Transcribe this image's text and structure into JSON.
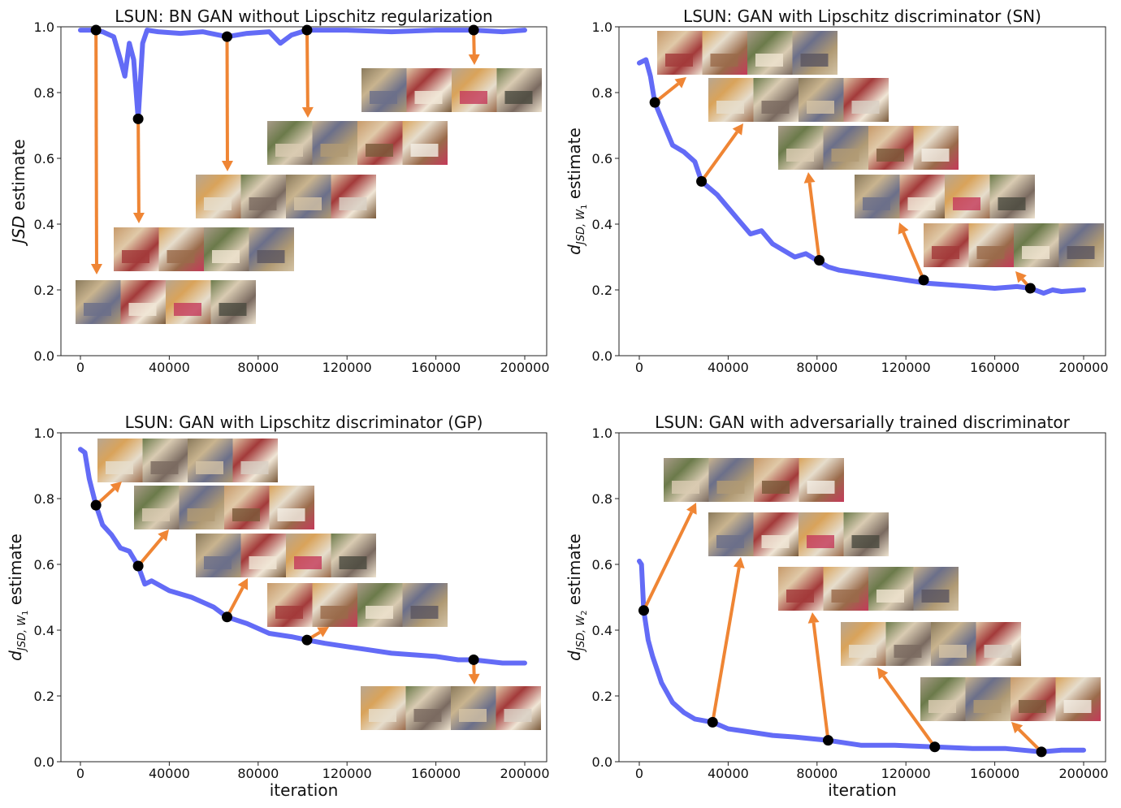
{
  "chart_data": [
    {
      "type": "line",
      "title": "LSUN: BN GAN without Lipschitz regularization",
      "xlabel": "",
      "ylabel_parts": [
        {
          "text": "JSD",
          "style": "italic"
        },
        {
          "text": " estimate",
          "style": "normal"
        }
      ],
      "xlim": [
        -4000,
        210000
      ],
      "ylim": [
        0,
        1
      ],
      "xticks": [
        0,
        40000,
        80000,
        120000,
        160000,
        200000
      ],
      "yticks": [
        0.0,
        0.2,
        0.4,
        0.6,
        0.8,
        1.0
      ],
      "ytick_labels": [
        "0.0",
        "0.2",
        "0.4",
        "0.6",
        "0.8",
        "1.0"
      ],
      "line_color": "#5b63f5",
      "marker_color": "#000000",
      "arrow_color": "#ef8534",
      "series": {
        "name": "JSD estimate",
        "x": [
          0,
          5000,
          10000,
          15000,
          18000,
          20000,
          22000,
          24000,
          26000,
          28000,
          30000,
          35000,
          45000,
          55000,
          66000,
          75000,
          85000,
          90000,
          95000,
          102000,
          120000,
          140000,
          160000,
          177000,
          190000,
          200000
        ],
        "y": [
          0.99,
          0.99,
          0.985,
          0.97,
          0.9,
          0.85,
          0.95,
          0.9,
          0.72,
          0.95,
          0.99,
          0.985,
          0.98,
          0.985,
          0.97,
          0.98,
          0.985,
          0.95,
          0.975,
          0.99,
          0.99,
          0.985,
          0.99,
          0.99,
          0.985,
          0.99
        ]
      },
      "sample_points": {
        "x": [
          7000,
          26000,
          66000,
          102000,
          177000
        ],
        "y": [
          0.99,
          0.72,
          0.97,
          0.99,
          0.99
        ]
      }
    },
    {
      "type": "line",
      "title": "LSUN: GAN with Lipschitz discriminator (SN)",
      "xlabel": "",
      "ylabel_parts": [
        {
          "text": "d",
          "style": "italic"
        },
        {
          "text": "JSD, W",
          "style": "sub-italic"
        },
        {
          "text": "1",
          "style": "subsub"
        },
        {
          "text": " estimate",
          "style": "normal"
        }
      ],
      "xlim": [
        -4000,
        210000
      ],
      "ylim": [
        0,
        1
      ],
      "xticks": [
        0,
        40000,
        80000,
        120000,
        160000,
        200000
      ],
      "yticks": [
        0.0,
        0.2,
        0.4,
        0.6,
        0.8,
        1.0
      ],
      "ytick_labels": [
        "0.0",
        "0.2",
        "0.4",
        "0.6",
        "0.8",
        "1.0"
      ],
      "line_color": "#5b63f5",
      "marker_color": "#000000",
      "arrow_color": "#ef8534",
      "series": {
        "name": "d_JSD,W1 estimate",
        "x": [
          0,
          3000,
          5000,
          7000,
          10000,
          15000,
          20000,
          25000,
          28000,
          35000,
          40000,
          45000,
          50000,
          55000,
          60000,
          65000,
          70000,
          75000,
          80000,
          85000,
          90000,
          100000,
          110000,
          120000,
          130000,
          140000,
          150000,
          160000,
          170000,
          176000,
          182000,
          186000,
          190000,
          200000
        ],
        "y": [
          0.89,
          0.9,
          0.85,
          0.77,
          0.72,
          0.64,
          0.62,
          0.59,
          0.53,
          0.49,
          0.45,
          0.41,
          0.37,
          0.38,
          0.34,
          0.32,
          0.3,
          0.31,
          0.29,
          0.27,
          0.26,
          0.25,
          0.24,
          0.23,
          0.22,
          0.215,
          0.21,
          0.205,
          0.21,
          0.205,
          0.19,
          0.2,
          0.195,
          0.2
        ]
      },
      "sample_points": {
        "x": [
          7000,
          28000,
          81000,
          128000,
          176000
        ],
        "y": [
          0.77,
          0.53,
          0.29,
          0.23,
          0.205
        ]
      }
    },
    {
      "type": "line",
      "title": "LSUN: GAN with Lipschitz discriminator (GP)",
      "xlabel": "iteration",
      "ylabel_parts": [
        {
          "text": "d",
          "style": "italic"
        },
        {
          "text": "JSD, W",
          "style": "sub-italic"
        },
        {
          "text": "1",
          "style": "subsub"
        },
        {
          "text": " estimate",
          "style": "normal"
        }
      ],
      "xlim": [
        -4000,
        210000
      ],
      "ylim": [
        0,
        1
      ],
      "xticks": [
        0,
        40000,
        80000,
        120000,
        160000,
        200000
      ],
      "yticks": [
        0.0,
        0.2,
        0.4,
        0.6,
        0.8,
        1.0
      ],
      "ytick_labels": [
        "0.0",
        "0.2",
        "0.4",
        "0.6",
        "0.8",
        "1.0"
      ],
      "line_color": "#5b63f5",
      "marker_color": "#000000",
      "arrow_color": "#ef8534",
      "series": {
        "name": "d_JSD,W1 estimate",
        "x": [
          0,
          2000,
          4000,
          7000,
          10000,
          14000,
          18000,
          22000,
          26000,
          29000,
          32000,
          40000,
          50000,
          60000,
          66000,
          75000,
          85000,
          95000,
          102000,
          110000,
          120000,
          130000,
          140000,
          150000,
          160000,
          170000,
          177000,
          190000,
          200000
        ],
        "y": [
          0.95,
          0.94,
          0.86,
          0.78,
          0.72,
          0.69,
          0.65,
          0.64,
          0.595,
          0.54,
          0.55,
          0.52,
          0.5,
          0.47,
          0.44,
          0.42,
          0.39,
          0.38,
          0.37,
          0.36,
          0.35,
          0.34,
          0.33,
          0.325,
          0.32,
          0.31,
          0.31,
          0.3,
          0.3
        ]
      },
      "sample_points": {
        "x": [
          7000,
          26000,
          66000,
          102000,
          177000
        ],
        "y": [
          0.78,
          0.595,
          0.44,
          0.37,
          0.31
        ]
      }
    },
    {
      "type": "line",
      "title": "LSUN: GAN with adversarially trained discriminator",
      "xlabel": "iteration",
      "ylabel_parts": [
        {
          "text": "d",
          "style": "italic"
        },
        {
          "text": "JSD, W",
          "style": "sub-italic"
        },
        {
          "text": "2",
          "style": "subsub"
        },
        {
          "text": " estimate",
          "style": "normal"
        }
      ],
      "xlim": [
        -4000,
        210000
      ],
      "ylim": [
        0,
        1
      ],
      "xticks": [
        0,
        40000,
        80000,
        120000,
        160000,
        200000
      ],
      "yticks": [
        0.0,
        0.2,
        0.4,
        0.6,
        0.8,
        1.0
      ],
      "ytick_labels": [
        "0.0",
        "0.2",
        "0.4",
        "0.6",
        "0.8",
        "1.0"
      ],
      "line_color": "#5b63f5",
      "marker_color": "#000000",
      "arrow_color": "#ef8534",
      "series": {
        "name": "d_JSD,W2 estimate",
        "x": [
          0,
          1000,
          2000,
          4000,
          6000,
          10000,
          15000,
          20000,
          25000,
          33000,
          40000,
          50000,
          60000,
          70000,
          85000,
          100000,
          115000,
          133000,
          150000,
          165000,
          181000,
          190000,
          200000
        ],
        "y": [
          0.61,
          0.6,
          0.46,
          0.37,
          0.32,
          0.24,
          0.18,
          0.15,
          0.13,
          0.12,
          0.1,
          0.09,
          0.08,
          0.075,
          0.065,
          0.05,
          0.05,
          0.045,
          0.04,
          0.04,
          0.03,
          0.035,
          0.035
        ]
      },
      "sample_points": {
        "x": [
          2000,
          33000,
          85000,
          133000,
          181000
        ],
        "y": [
          0.46,
          0.12,
          0.065,
          0.045,
          0.03
        ]
      }
    }
  ]
}
